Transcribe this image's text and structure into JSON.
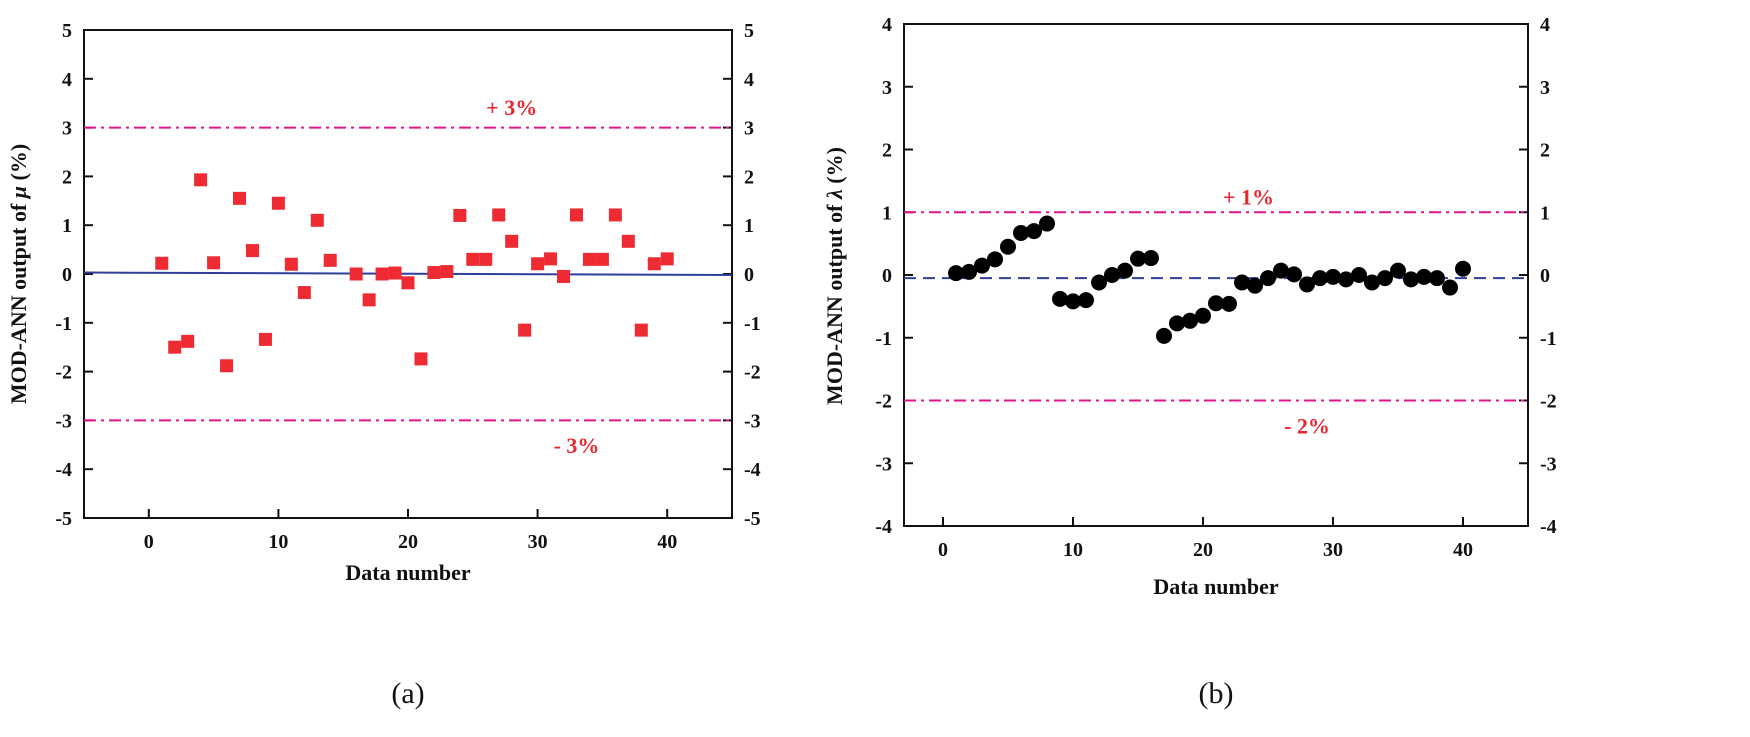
{
  "chart_data": [
    {
      "type": "scatter",
      "panel": "a",
      "caption": "(a)",
      "title": "",
      "xlabel": "Data number",
      "ylabel_prefix": "MOD-ANN output of ",
      "ylabel_symbol": "μ",
      "ylabel_suffix": " (%)",
      "xlim": [
        -5,
        45
      ],
      "ylim": [
        -5,
        5
      ],
      "xticks": [
        "0",
        "10",
        "20",
        "30",
        "40"
      ],
      "xtick_values": [
        0,
        10,
        20,
        30,
        40
      ],
      "yticks": [
        "5",
        "4",
        "3",
        "2",
        "1",
        "0",
        "-1",
        "-2",
        "-3",
        "-4",
        "-5"
      ],
      "ytick_values": [
        5,
        4,
        3,
        2,
        1,
        0,
        -1,
        -2,
        -3,
        -4,
        -5
      ],
      "marker": "square",
      "marker_color": "#ee2a33",
      "series": [
        {
          "name": "MOD-ANN output",
          "x": [
            1,
            2,
            3,
            4,
            5,
            6,
            7,
            8,
            9,
            10,
            11,
            12,
            13,
            14,
            16,
            17,
            18,
            19,
            20,
            21,
            22,
            23,
            24,
            25,
            26,
            27,
            28,
            29,
            30,
            31,
            32,
            33,
            34,
            35,
            36,
            37,
            38,
            39,
            40
          ],
          "y": [
            0.22,
            -1.5,
            -1.38,
            1.93,
            0.23,
            -1.88,
            1.55,
            0.48,
            -1.34,
            1.45,
            0.2,
            -0.38,
            1.1,
            0.28,
            0.0,
            -0.53,
            0.0,
            0.02,
            -0.18,
            -1.74,
            0.03,
            0.05,
            1.2,
            0.3,
            0.3,
            1.21,
            0.67,
            -1.15,
            0.21,
            0.31,
            -0.05,
            1.21,
            0.3,
            0.3,
            1.21,
            0.67,
            -1.15,
            0.21,
            0.31
          ]
        }
      ],
      "reference_line": {
        "style": "solid",
        "color": "#2f3f9a",
        "x": [
          -5,
          45
        ],
        "y": [
          0.03,
          -0.02
        ]
      },
      "bounds": [
        {
          "value": 3,
          "label": "+ 3%",
          "label_x": 28,
          "label_y": 3.42,
          "color": "#e0148c"
        },
        {
          "value": -3,
          "label": "- 3%",
          "label_x": 33,
          "label_y": -3.5,
          "color": "#e0148c"
        }
      ]
    },
    {
      "type": "scatter",
      "panel": "b",
      "caption": "(b)",
      "title": "",
      "xlabel": "Data number",
      "ylabel_prefix": "MOD-ANN output of ",
      "ylabel_symbol": "λ",
      "ylabel_suffix": " (%)",
      "xlim": [
        -3,
        45
      ],
      "ylim": [
        -4,
        4
      ],
      "xticks": [
        "0",
        "10",
        "20",
        "30",
        "40"
      ],
      "xtick_values": [
        0,
        10,
        20,
        30,
        40
      ],
      "yticks": [
        "4",
        "3",
        "2",
        "1",
        "0",
        "-1",
        "-2",
        "-3",
        "-4"
      ],
      "ytick_values": [
        4,
        3,
        2,
        1,
        0,
        -1,
        -2,
        -3,
        -4
      ],
      "marker": "circle",
      "marker_color": "#000000",
      "series": [
        {
          "name": "MOD-ANN output",
          "x": [
            1,
            2,
            3,
            4,
            5,
            6,
            7,
            8,
            9,
            10,
            11,
            12,
            13,
            14,
            15,
            16,
            17,
            18,
            19,
            20,
            21,
            22,
            23,
            24,
            25,
            26,
            27,
            28,
            29,
            30,
            31,
            32,
            33,
            34,
            35,
            36,
            37,
            38,
            39,
            40
          ],
          "y": [
            0.03,
            0.05,
            0.15,
            0.25,
            0.45,
            0.67,
            0.7,
            0.82,
            -0.38,
            -0.42,
            -0.4,
            -0.12,
            0.0,
            0.07,
            0.26,
            0.27,
            -0.97,
            -0.77,
            -0.73,
            -0.65,
            -0.45,
            -0.46,
            -0.12,
            -0.17,
            -0.05,
            0.07,
            0.01,
            -0.15,
            -0.05,
            -0.03,
            -0.07,
            0.0,
            -0.12,
            -0.05,
            0.07,
            -0.07,
            -0.03,
            -0.05,
            -0.2,
            0.1
          ]
        }
      ],
      "reference_line": {
        "style": "dashed",
        "color": "#2f3f9a",
        "x": [
          -3,
          45
        ],
        "y": [
          -0.05,
          -0.05
        ]
      },
      "bounds": [
        {
          "value": 1,
          "label": "+ 1%",
          "label_x": 23.5,
          "label_y": 1.25,
          "color": "#e0148c"
        },
        {
          "value": -2,
          "label": "- 2%",
          "label_x": 28,
          "label_y": -2.4,
          "color": "#e0148c"
        }
      ]
    }
  ]
}
